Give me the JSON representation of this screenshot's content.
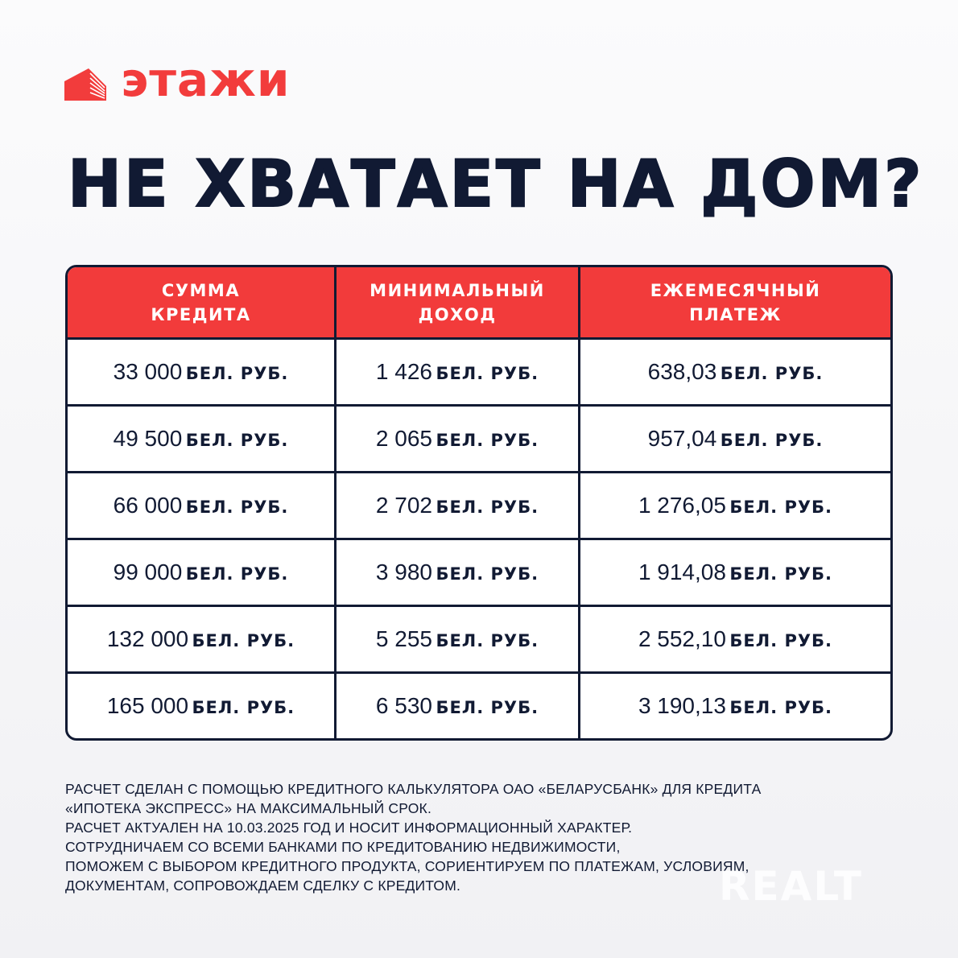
{
  "brand": {
    "name": "этажи",
    "color": "#f23c3c"
  },
  "title": "НЕ ХВАТАЕТ НА ДОМ?",
  "table": {
    "headers": [
      [
        "СУММА",
        "КРЕДИТА"
      ],
      [
        "МИНИМАЛЬНЫЙ",
        "ДОХОД"
      ],
      [
        "ЕЖЕМЕСЯЧНЫЙ",
        "ПЛАТЕЖ"
      ]
    ],
    "unit": "БЕЛ. РУБ.",
    "rows": [
      [
        "33 000",
        "1 426",
        "638,03"
      ],
      [
        "49 500",
        "2 065",
        "957,04"
      ],
      [
        "66 000",
        "2 702",
        "1 276,05"
      ],
      [
        "99 000",
        "3 980",
        "1 914,08"
      ],
      [
        "132 000",
        "5 255",
        "2 552,10"
      ],
      [
        "165 000",
        "6 530",
        "3 190,13"
      ]
    ],
    "header_color": "#f23b3b",
    "border_color": "#111a33"
  },
  "notes": [
    "РАСЧЕТ СДЕЛАН С ПОМОЩЬЮ КРЕДИТНОГО КАЛЬКУЛЯТОРА ОАО «БЕЛАРУСБАНК» ДЛЯ КРЕДИТА",
    "«ИПОТЕКА ЭКСПРЕСС» НА МАКСИМАЛЬНЫЙ СРОК.",
    "РАСЧЕТ АКТУАЛЕН НА 10.03.2025 ГОД И НОСИТ ИНФОРМАЦИОННЫЙ ХАРАКТЕР.",
    "СОТРУДНИЧАЕМ СО ВСЕМИ БАНКАМИ ПО КРЕДИТОВАНИЮ НЕДВИЖИМОСТИ,",
    "ПОМОЖЕМ С ВЫБОРОМ КРЕДИТНОГО ПРОДУКТА, СОРИЕНТИРУЕМ ПО ПЛАТЕЖАМ, УСЛОВИЯМ,",
    "ДОКУМЕНТАМ, СОПРОВОЖДАЕМ СДЕЛКУ С КРЕДИТОМ."
  ],
  "watermark": "REALT"
}
